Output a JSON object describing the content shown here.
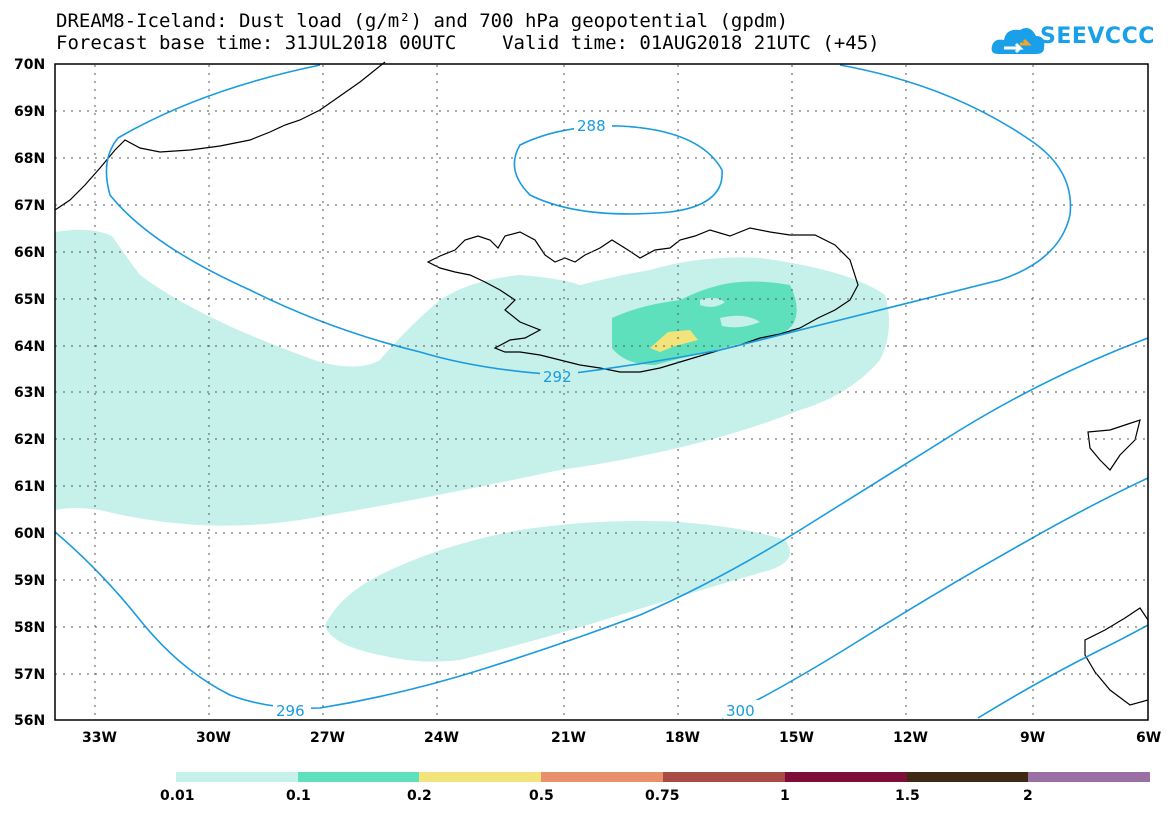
{
  "title_line1": "DREAM8-Iceland: Dust load (g/m²) and 700 hPa geopotential (gpdm)",
  "title_line2": "Forecast base time: 31JUL2018 00UTC    Valid time: 01AUG2018 21UTC (+45)",
  "logo_text": "SEEVCCC",
  "colors": {
    "contour": "#1a9be0",
    "dust": [
      "#c6f0ea",
      "#5ee0bc",
      "#f2e47a",
      "#e8906c",
      "#a84b47",
      "#7d0e37",
      "#3e2a14",
      "#9a6fa3"
    ]
  },
  "map": {
    "lon_range": [
      -34,
      -6
    ],
    "lat_range": [
      56,
      70
    ],
    "lon_ticks": [
      "33W",
      "30W",
      "27W",
      "24W",
      "21W",
      "18W",
      "15W",
      "12W",
      "9W",
      "6W"
    ],
    "lat_ticks": [
      "70N",
      "69N",
      "68N",
      "67N",
      "66N",
      "65N",
      "64N",
      "63N",
      "62N",
      "61N",
      "60N",
      "59N",
      "58N",
      "57N",
      "56N"
    ]
  },
  "contours": {
    "labels": [
      "288",
      "292",
      "296",
      "300"
    ]
  },
  "colorbar": {
    "labels": [
      "0.01",
      "0.1",
      "0.2",
      "0.5",
      "0.75",
      "1",
      "1.5",
      "2"
    ]
  }
}
